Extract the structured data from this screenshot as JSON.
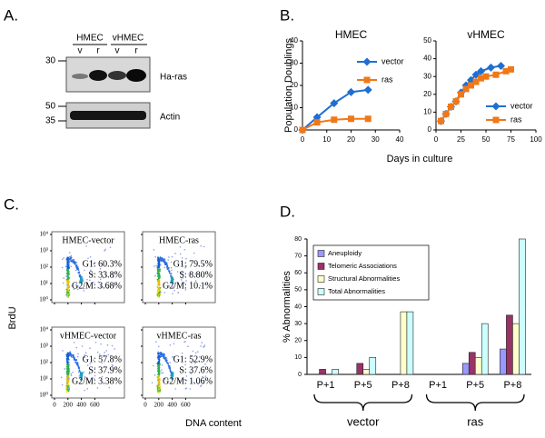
{
  "panel_labels": [
    "A.",
    "B.",
    "C.",
    "D."
  ],
  "panel_a": {
    "groups": [
      "HMEC",
      "vHMEC"
    ],
    "lanes": [
      "v",
      "r",
      "v",
      "r"
    ],
    "markers": [
      "30",
      "50",
      "35"
    ],
    "proteins": [
      "Ha-ras",
      "Actin"
    ]
  },
  "panel_b": {
    "xlabel": "Days in culture"
  },
  "chart_data": [
    {
      "type": "line",
      "title": "HMEC",
      "ylabel": "Population Doublings",
      "xlim": [
        0,
        40
      ],
      "xticks": [
        0,
        10,
        20,
        30,
        40
      ],
      "ylim": [
        0,
        40
      ],
      "yticks": [
        0,
        10,
        20,
        30,
        40
      ],
      "series": [
        {
          "name": "vector",
          "color": "#1f6fd1",
          "marker": "diamond",
          "x": [
            0,
            6,
            13,
            20,
            27
          ],
          "values": [
            0,
            5.7,
            12,
            17,
            18
          ]
        },
        {
          "name": "ras",
          "color": "#f07818",
          "marker": "square",
          "x": [
            0,
            6,
            13,
            20,
            27
          ],
          "values": [
            0,
            3.4,
            4.6,
            5,
            5
          ]
        }
      ]
    },
    {
      "type": "line",
      "title": "vHMEC",
      "xlim": [
        0,
        100
      ],
      "xticks": [
        0,
        25,
        50,
        75,
        100
      ],
      "ylim": [
        0,
        50
      ],
      "yticks": [
        0,
        10,
        20,
        30,
        40,
        50
      ],
      "series": [
        {
          "name": "vector",
          "color": "#1f6fd1",
          "marker": "diamond",
          "x": [
            5,
            10,
            15,
            20,
            25,
            30,
            35,
            40,
            45,
            55,
            65
          ],
          "values": [
            5,
            9,
            13,
            16,
            21,
            25,
            28,
            31,
            33,
            35,
            36
          ]
        },
        {
          "name": "ras",
          "color": "#f07818",
          "marker": "square",
          "x": [
            5,
            10,
            15,
            20,
            25,
            30,
            35,
            40,
            45,
            50,
            60,
            70,
            75
          ],
          "values": [
            5,
            9,
            13,
            16,
            20,
            23,
            25,
            27,
            29,
            30,
            31,
            33,
            34
          ]
        }
      ]
    },
    {
      "type": "bar",
      "ylabel": "% Abnormalities",
      "categories": [
        "P+1",
        "P+5",
        "P+8",
        "P+1",
        "P+5",
        "P+8"
      ],
      "groups": [
        "vector",
        "ras"
      ],
      "ylim": [
        0,
        80
      ],
      "yticks": [
        0,
        10,
        20,
        30,
        40,
        50,
        60,
        70,
        80
      ],
      "series": [
        {
          "name": "Aneuploidy",
          "color": "#9999ff",
          "values": [
            0,
            0,
            0,
            0,
            6.5,
            15
          ]
        },
        {
          "name": "Telomeric Associations",
          "color": "#993366",
          "values": [
            3,
            6.5,
            0,
            0,
            13,
            35
          ]
        },
        {
          "name": "Structural Abnormalities",
          "color": "#ffffcc",
          "values": [
            0,
            3,
            37,
            0,
            10,
            30
          ]
        },
        {
          "name": "Total Abnormalities",
          "color": "#ccffff",
          "values": [
            3,
            10,
            37,
            0,
            30,
            80
          ]
        }
      ]
    }
  ],
  "panel_c": {
    "ylabel": "BrdU",
    "xlabel": "DNA content",
    "ylim": [
      1,
      10000
    ],
    "yticks": [
      {
        "value": 1,
        "label": "10⁰"
      },
      {
        "value": 10,
        "label": "10¹"
      },
      {
        "value": 100,
        "label": "10²"
      },
      {
        "value": 1000,
        "label": "10³"
      },
      {
        "value": 10000,
        "label": "10⁴"
      }
    ],
    "xlim": [
      0,
      1000
    ],
    "xticks": [
      0,
      200,
      400,
      600
    ],
    "plots": [
      {
        "title": "HMEC-vector",
        "stats": [
          "G1: 60.3%",
          "S: 33.8%",
          "G2/M: 3.68%"
        ]
      },
      {
        "title": "HMEC-ras",
        "stats": [
          "G1: 79.5%",
          "S: 8.80%",
          "G2/M: 10.1%"
        ]
      },
      {
        "title": "vHMEC-vector",
        "stats": [
          "G1: 57.8%",
          "S: 37.9%",
          "G2/M: 3.38%"
        ]
      },
      {
        "title": "vHMEC-ras",
        "stats": [
          "G1: 52.9%",
          "S: 37.6%",
          "G2/M: 1.06%"
        ]
      }
    ]
  }
}
